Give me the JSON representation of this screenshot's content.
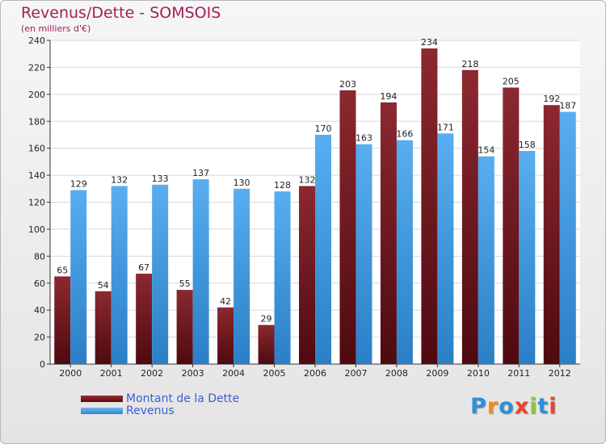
{
  "header": {
    "title": "Revenus/Dette - SOMSOIS",
    "subtitle": "(en milliers d'€)"
  },
  "chart_data": {
    "type": "bar",
    "title": "Revenus/Dette - SOMSOIS",
    "ylabel": "(en milliers d'€)",
    "xlabel": "",
    "ylim": [
      0,
      240
    ],
    "yticks": [
      0,
      20,
      40,
      60,
      80,
      100,
      120,
      140,
      160,
      180,
      200,
      220,
      240
    ],
    "grid": true,
    "categories": [
      "2000",
      "2001",
      "2002",
      "2003",
      "2004",
      "2005",
      "2006",
      "2007",
      "2008",
      "2009",
      "2010",
      "2011",
      "2012"
    ],
    "series": [
      {
        "name": "Montant de la Dette",
        "color": "#7a1a22",
        "values": [
          65,
          54,
          67,
          55,
          42,
          29,
          132,
          203,
          194,
          234,
          218,
          205,
          192
        ]
      },
      {
        "name": "Revenus",
        "color": "#4a9fe0",
        "values": [
          129,
          132,
          133,
          137,
          130,
          128,
          170,
          163,
          166,
          171,
          154,
          158,
          187
        ]
      }
    ],
    "legend_position": "bottom-left"
  },
  "legend": {
    "debt_label": "Montant de la Dette",
    "revenue_label": "Revenus"
  },
  "logo": {
    "text": "Proxiti",
    "letters": [
      "P",
      "r",
      "o",
      "x",
      "i",
      "t",
      "i"
    ],
    "colors": [
      "#2f8fd8",
      "#f08a1c",
      "#2f8fd8",
      "#e8442a",
      "#8cc63e",
      "#2f8fd8",
      "#e8442a"
    ]
  }
}
